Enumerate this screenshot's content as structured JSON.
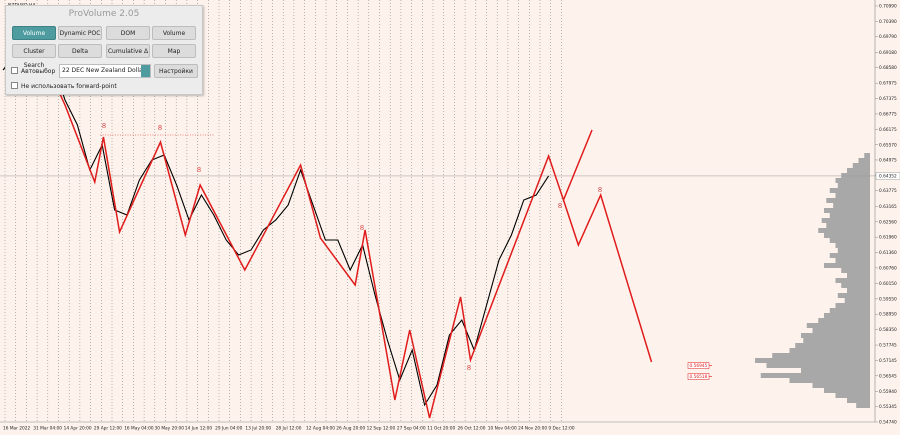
{
  "symbol": "NZDUSD,H4",
  "panel": {
    "title": "ProVolume 2.05",
    "buttons": [
      "Volume Profile",
      "Dynamic POC",
      "DOM",
      "Volume",
      "Cluster Search",
      "Delta",
      "Cumulative Δ",
      "Map"
    ],
    "auto_select": "Автовыбор",
    "contract": "22 DEC New Zealand Dollar",
    "settings": "Настройки",
    "forward_point": "Не использовать forward-point"
  },
  "chart_data": {
    "type": "line",
    "ylim": [
      0.5474,
      0.7099
    ],
    "price_ticks": [
      {
        "value": 0.7099,
        "label": "0.70990"
      },
      {
        "value": 0.7039,
        "label": "0.70390"
      },
      {
        "value": 0.6979,
        "label": "0.69790"
      },
      {
        "value": 0.6918,
        "label": "0.69180"
      },
      {
        "value": 0.6858,
        "label": "0.68580"
      },
      {
        "value": 0.67975,
        "label": "0.67975"
      },
      {
        "value": 0.67375,
        "label": "0.67375"
      },
      {
        "value": 0.66775,
        "label": "0.66775"
      },
      {
        "value": 0.66175,
        "label": "0.66175"
      },
      {
        "value": 0.6557,
        "label": "0.65570"
      },
      {
        "value": 0.64975,
        "label": "0.64975"
      },
      {
        "value": 0.6437,
        "label": "0.64370"
      },
      {
        "value": 0.63775,
        "label": "0.63775"
      },
      {
        "value": 0.63165,
        "label": "0.63165"
      },
      {
        "value": 0.6256,
        "label": "0.62560"
      },
      {
        "value": 0.6196,
        "label": "0.61960"
      },
      {
        "value": 0.6136,
        "label": "0.61360"
      },
      {
        "value": 0.6076,
        "label": "0.60760"
      },
      {
        "value": 0.6015,
        "label": "0.60150"
      },
      {
        "value": 0.5955,
        "label": "0.59550"
      },
      {
        "value": 0.5895,
        "label": "0.58950"
      },
      {
        "value": 0.5835,
        "label": "0.58350"
      },
      {
        "value": 0.57745,
        "label": "0.57745"
      },
      {
        "value": 0.57145,
        "label": "0.57145"
      },
      {
        "value": 0.56545,
        "label": "0.56545"
      },
      {
        "value": 0.5594,
        "label": "0.55940"
      },
      {
        "value": 0.55345,
        "label": "0.55345"
      },
      {
        "value": 0.5474,
        "label": "0.54740"
      }
    ],
    "x_labels": [
      "16 Mar 2022",
      "31 Mar 04:00",
      "14 Apr 20:00",
      "29 Apr 12:00",
      "16 May 04:00",
      "30 May 20:00",
      "14 Jun 12:00",
      "29 Jun 04:00",
      "13 Jul 20:00",
      "28 Jul 12:00",
      "12 Aug 04:00",
      "26 Aug 20:00",
      "12 Sep 12:00",
      "27 Sep 04:00",
      "11 Oct 20:00",
      "26 Oct 12:00",
      "10 Nov 04:00",
      "24 Nov 20:00",
      "9 Dec 12:00"
    ],
    "price": {
      "color": "#000000",
      "values": [
        0.6849,
        0.69076,
        0.68803,
        0.68099,
        0.68803,
        0.67318,
        0.66342,
        0.64584,
        0.6556,
        0.63021,
        0.62826,
        0.64193,
        0.64974,
        0.6517,
        0.63998,
        0.62631,
        0.63607,
        0.62826,
        0.61849,
        0.61263,
        0.61459,
        0.6224,
        0.62631,
        0.63217,
        0.64584,
        0.63217,
        0.61849,
        0.61849,
        0.60677,
        0.61654,
        0.59701,
        0.57943,
        0.56381,
        0.57552,
        0.55404,
        0.56185,
        0.58138,
        0.58724,
        0.57552,
        0.5931,
        0.61068,
        0.62045,
        0.63412,
        0.63607,
        0.64352
      ]
    },
    "zigzag": {
      "color": "#e01c1c",
      "x": [
        3.4,
        5.0,
        7.4,
        8.1,
        9.4,
        12.7,
        14.7,
        15.9,
        19.5,
        24.0,
        25.6,
        28.4,
        29.2,
        31.6,
        32.8,
        34.4,
        36.9,
        37.7,
        44.0,
        45.2,
        47.5
      ],
      "values": [
        0.68803,
        0.67123,
        0.64115,
        0.65873,
        0.62162,
        0.65677,
        0.62045,
        0.63998,
        0.60677,
        0.64779,
        0.61927,
        0.60092,
        0.6224,
        0.55599,
        0.58334,
        0.54896,
        0.59623,
        0.57162,
        0.65131,
        0.63412,
        0.66146
      ]
    },
    "projection": {
      "color": "#e01c1c",
      "x": [
        45.2,
        46.4,
        48.2,
        52.3
      ],
      "values": [
        0.63412,
        0.61654,
        0.63607,
        0.57084
      ]
    },
    "wave_labels": [
      "8",
      "8",
      "8",
      "8",
      "8",
      "8",
      "8"
    ],
    "current_price": {
      "value": 0.64352,
      "label": "0.64352"
    },
    "levels": [
      {
        "value": 0.56945,
        "label": "0.56945"
      },
      {
        "value": 0.56518,
        "label": "0.56518"
      }
    ],
    "volume_profile": {
      "color": "#a8a8a8",
      "values": [
        5,
        10,
        15,
        20,
        25,
        30,
        28,
        35,
        30,
        38,
        32,
        40,
        35,
        42,
        38,
        45,
        40,
        35,
        30,
        28,
        35,
        30,
        40,
        25,
        20,
        30,
        25,
        20,
        28,
        22,
        30,
        35,
        40,
        45,
        55,
        50,
        60,
        58,
        65,
        70,
        85,
        100,
        90,
        60,
        95,
        70,
        50,
        40,
        30,
        20,
        12
      ]
    }
  }
}
